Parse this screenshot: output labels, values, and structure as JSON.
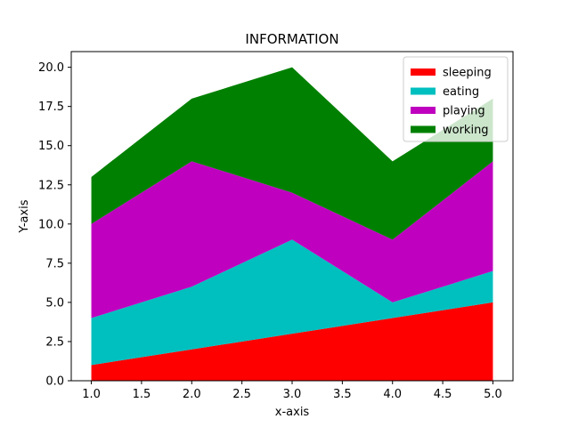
{
  "chart_data": {
    "type": "area",
    "stacked": true,
    "title": "INFORMATION",
    "xlabel": "x-axis",
    "ylabel": "Y-axis",
    "x": [
      1,
      2,
      3,
      4,
      5
    ],
    "xlim": [
      0.8,
      5.2
    ],
    "ylim": [
      0,
      21
    ],
    "xticks": [
      "1.0",
      "1.5",
      "2.0",
      "2.5",
      "3.0",
      "3.5",
      "4.0",
      "4.5",
      "5.0"
    ],
    "yticks": [
      "0.0",
      "2.5",
      "5.0",
      "7.5",
      "10.0",
      "12.5",
      "15.0",
      "17.5",
      "20.0"
    ],
    "grid": false,
    "legend_position": "top-right",
    "series": [
      {
        "name": "sleeping",
        "values": [
          1,
          2,
          3,
          4,
          5
        ],
        "color": "#ff0000"
      },
      {
        "name": "eating",
        "values": [
          3,
          4,
          6,
          1,
          2
        ],
        "color": "#00bfbf"
      },
      {
        "name": "playing",
        "values": [
          6,
          8,
          3,
          4,
          7
        ],
        "color": "#bf00bf"
      },
      {
        "name": "working",
        "values": [
          3,
          4,
          8,
          5,
          4
        ],
        "color": "#008000"
      }
    ]
  }
}
